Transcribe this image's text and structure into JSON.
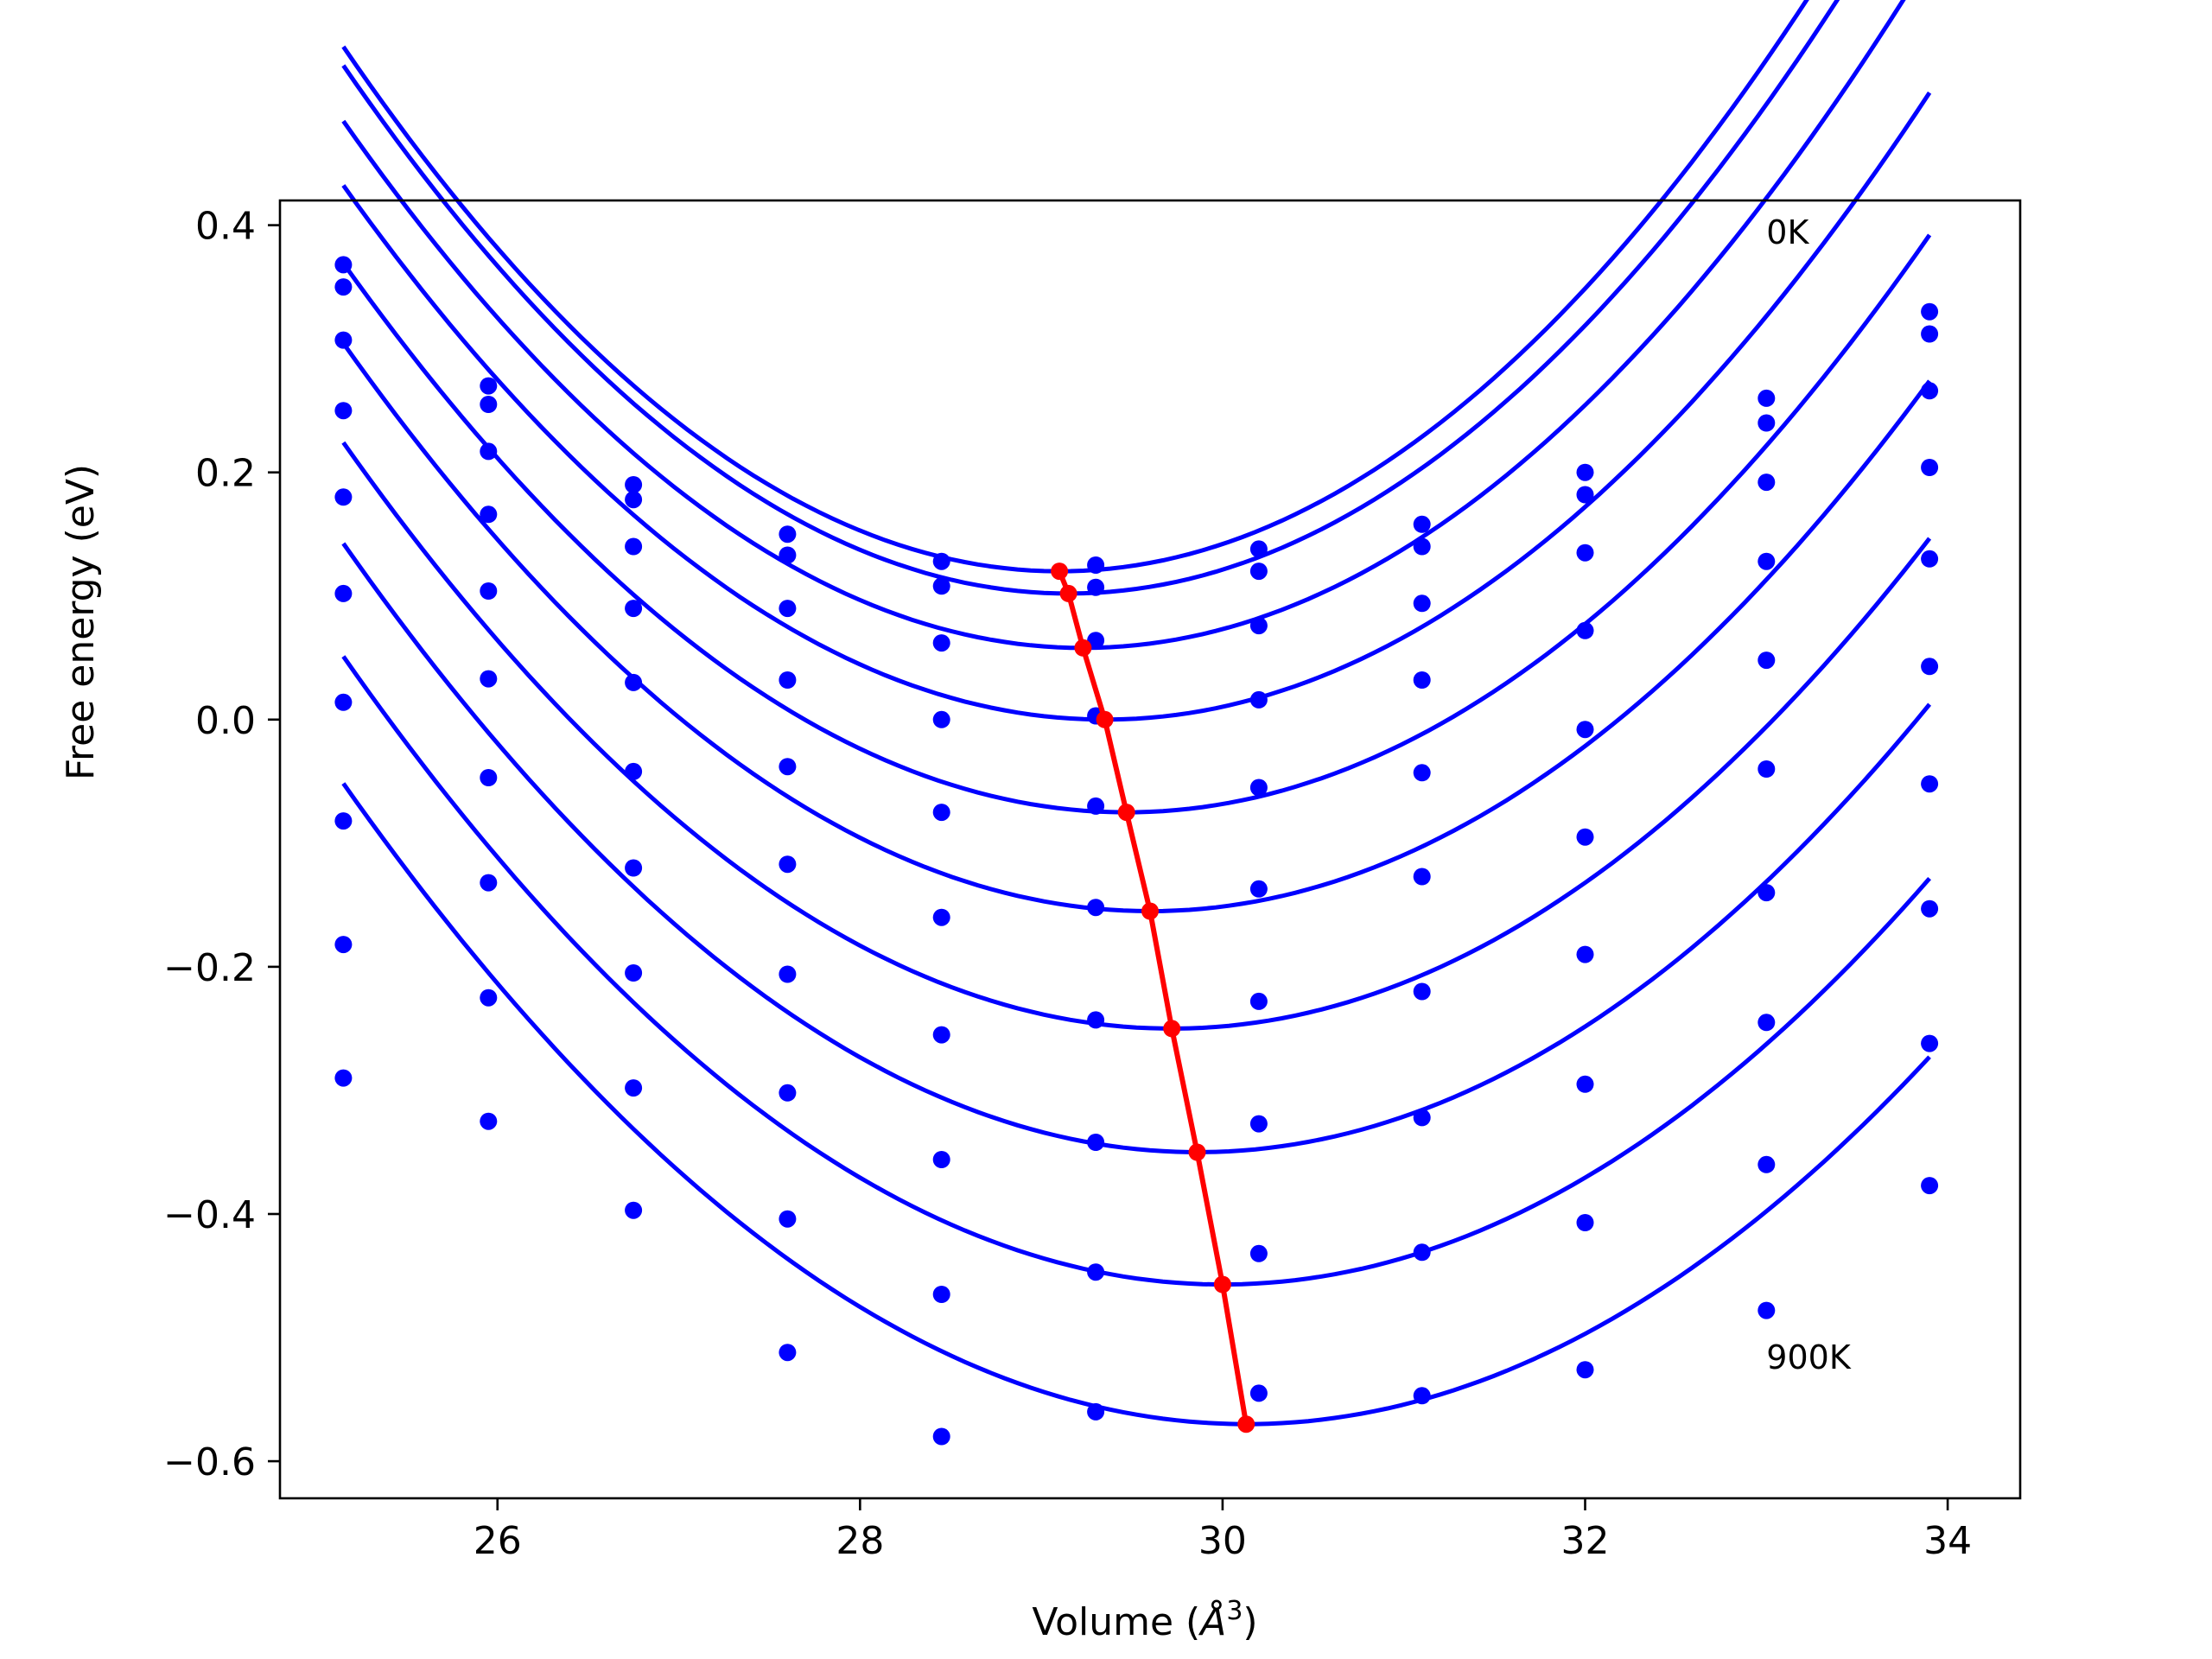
{
  "chart_data": {
    "type": "scatter",
    "title": "",
    "xlabel_main": "Volume (",
    "xlabel_unit": "Å",
    "xlabel_sup": "3",
    "xlabel_close": ")",
    "ylabel": "Free energy (eV)",
    "xlim": [
      24.8,
      34.4
    ],
    "ylim": [
      -0.63,
      0.42
    ],
    "xticks": [
      26,
      28,
      30,
      32,
      34
    ],
    "yticks": [
      0.4,
      0.2,
      0.0,
      -0.2,
      -0.4,
      -0.6
    ],
    "xtick_labels": [
      "26",
      "28",
      "30",
      "32",
      "34"
    ],
    "ytick_labels": [
      "0.4",
      "0.2",
      "0.0",
      "−0.2",
      "−0.4",
      "−0.6"
    ],
    "grid": false,
    "annotations": [
      {
        "text": "0K",
        "x": 33.0,
        "y": 0.385
      },
      {
        "text": "900K",
        "x": 33.0,
        "y": -0.525
      }
    ],
    "colors": {
      "points": "#0000ff",
      "curves": "#0000ff",
      "minima": "#ff0000"
    },
    "x": [
      25.15,
      25.95,
      26.75,
      27.6,
      28.45,
      29.3,
      30.2,
      31.1,
      32.0,
      33.0,
      33.9
    ],
    "series": [
      {
        "y": [
          0.368,
          0.27,
          0.19,
          0.15,
          0.128,
          0.125,
          0.138,
          0.158,
          0.2,
          0.26,
          0.33
        ]
      },
      {
        "y": [
          0.35,
          0.255,
          0.178,
          0.133,
          0.108,
          0.107,
          0.12,
          0.14,
          0.182,
          0.24,
          0.312
        ]
      },
      {
        "y": [
          0.307,
          0.217,
          0.14,
          0.09,
          0.062,
          0.064,
          0.076,
          0.094,
          0.135,
          0.192,
          0.266
        ]
      },
      {
        "y": [
          0.25,
          0.166,
          0.09,
          0.032,
          0.0,
          0.003,
          0.016,
          0.032,
          0.072,
          0.128,
          0.204
        ]
      },
      {
        "y": [
          0.18,
          0.104,
          0.03,
          -0.038,
          -0.075,
          -0.07,
          -0.055,
          -0.043,
          -0.008,
          0.048,
          0.13
        ]
      },
      {
        "y": [
          0.102,
          0.033,
          -0.042,
          -0.117,
          -0.16,
          -0.152,
          -0.137,
          -0.127,
          -0.095,
          -0.04,
          0.043
        ]
      },
      {
        "y": [
          0.014,
          -0.047,
          -0.12,
          -0.206,
          -0.255,
          -0.243,
          -0.228,
          -0.22,
          -0.19,
          -0.14,
          -0.052
        ]
      },
      {
        "y": [
          -0.082,
          -0.132,
          -0.205,
          -0.302,
          -0.356,
          -0.342,
          -0.327,
          -0.322,
          -0.295,
          -0.245,
          -0.153
        ]
      },
      {
        "y": [
          -0.182,
          -0.225,
          -0.298,
          -0.404,
          -0.465,
          -0.447,
          -0.432,
          -0.431,
          -0.407,
          -0.36,
          -0.262
        ]
      },
      {
        "y": [
          -0.29,
          -0.325,
          -0.397,
          -0.512,
          -0.58,
          -0.56,
          -0.545,
          -0.547,
          -0.526,
          -0.478,
          -0.377
        ]
      }
    ],
    "fits": [
      {
        "vmin": 29.1,
        "emin": 0.12,
        "a": 0.0272
      },
      {
        "vmin": 29.15,
        "emin": 0.102,
        "a": 0.0267
      },
      {
        "vmin": 29.23,
        "emin": 0.058,
        "a": 0.0256
      },
      {
        "vmin": 29.35,
        "emin": 0.0,
        "a": 0.0245
      },
      {
        "vmin": 29.47,
        "emin": -0.075,
        "a": 0.0238
      },
      {
        "vmin": 29.6,
        "emin": -0.155,
        "a": 0.0232
      },
      {
        "vmin": 29.72,
        "emin": -0.25,
        "a": 0.0227
      },
      {
        "vmin": 29.86,
        "emin": -0.35,
        "a": 0.0222
      },
      {
        "vmin": 30.0,
        "emin": -0.457,
        "a": 0.0216
      },
      {
        "vmin": 30.13,
        "emin": -0.57,
        "a": 0.0209
      }
    ],
    "minima": {
      "x": [
        29.1,
        29.15,
        29.23,
        29.35,
        29.47,
        29.6,
        29.72,
        29.86,
        30.0,
        30.13
      ],
      "y": [
        0.12,
        0.102,
        0.058,
        0.0,
        -0.075,
        -0.155,
        -0.25,
        -0.35,
        -0.457,
        -0.57
      ]
    }
  }
}
